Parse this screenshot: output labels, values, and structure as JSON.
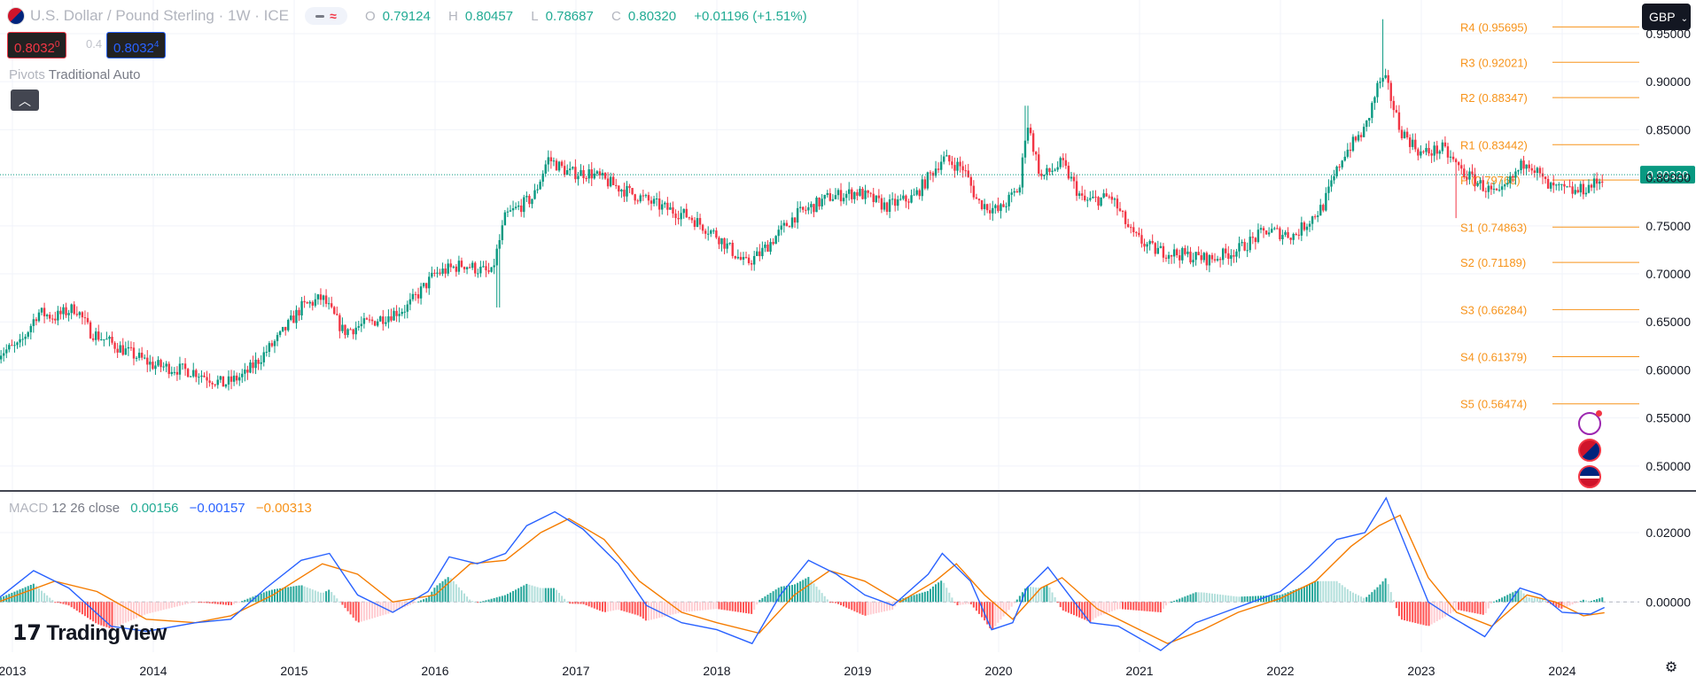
{
  "header": {
    "title": "U.S. Dollar / Pound Sterling · 1W · ICE",
    "ohlc": {
      "o_label": "O",
      "o": "0.79124",
      "h_label": "H",
      "h": "0.80457",
      "l_label": "L",
      "l": "0.78687",
      "c_label": "C",
      "c": "0.80320",
      "change": "+0.01196 (+1.51%)"
    }
  },
  "trade": {
    "sell": "0.8032",
    "sell_sup": "0",
    "spread": "0.4",
    "buy": "0.8032",
    "buy_sup": "4"
  },
  "pivots_legend": {
    "name": "Pivots",
    "value": "Traditional Auto"
  },
  "currency": "GBP",
  "macd_legend": {
    "name": "MACD",
    "params": "12 26 close",
    "hist": "0.00156",
    "macd": "−0.00157",
    "signal": "−0.00313"
  },
  "logo": {
    "text": "TradingView"
  },
  "colors": {
    "up": "#089981",
    "down": "#f23645",
    "pivot": "#f7931a",
    "macd": "#2962ff",
    "signal": "#f57c00"
  },
  "icons": [
    "flag-us-gb-icon",
    "chevron-up-icon",
    "flash-icon",
    "flag-gb-icon",
    "flag-us-icon",
    "gear-icon"
  ],
  "chart_data": [
    {
      "type": "candlestick",
      "title": "U.S. Dollar / Pound Sterling · 1W · ICE",
      "x_ticks": [
        "2013",
        "2014",
        "2015",
        "2016",
        "2017",
        "2018",
        "2019",
        "2020",
        "2021",
        "2022",
        "2023",
        "2024"
      ],
      "y_ticks": [
        "0.95000",
        "0.90000",
        "0.85000",
        "0.80000",
        "0.75000",
        "0.70000",
        "0.65000",
        "0.60000",
        "0.55000",
        "0.50000"
      ],
      "ylim": [
        0.475,
        0.985
      ],
      "last_price": "0.80320",
      "close_path": [
        {
          "t": 2012.9,
          "v": 0.618
        },
        {
          "t": 2013.05,
          "v": 0.625
        },
        {
          "t": 2013.18,
          "v": 0.66
        },
        {
          "t": 2013.3,
          "v": 0.655
        },
        {
          "t": 2013.45,
          "v": 0.665
        },
        {
          "t": 2013.55,
          "v": 0.64
        },
        {
          "t": 2013.8,
          "v": 0.62
        },
        {
          "t": 2014.0,
          "v": 0.605
        },
        {
          "t": 2014.3,
          "v": 0.598
        },
        {
          "t": 2014.5,
          "v": 0.585
        },
        {
          "t": 2014.65,
          "v": 0.595
        },
        {
          "t": 2014.9,
          "v": 0.635
        },
        {
          "t": 2015.05,
          "v": 0.665
        },
        {
          "t": 2015.2,
          "v": 0.675
        },
        {
          "t": 2015.35,
          "v": 0.64
        },
        {
          "t": 2015.55,
          "v": 0.65
        },
        {
          "t": 2015.8,
          "v": 0.665
        },
        {
          "t": 2016.0,
          "v": 0.7
        },
        {
          "t": 2016.2,
          "v": 0.71
        },
        {
          "t": 2016.4,
          "v": 0.7
        },
        {
          "t": 2016.5,
          "v": 0.76
        },
        {
          "t": 2016.7,
          "v": 0.78
        },
        {
          "t": 2016.8,
          "v": 0.82
        },
        {
          "t": 2016.95,
          "v": 0.805
        },
        {
          "t": 2017.1,
          "v": 0.805
        },
        {
          "t": 2017.3,
          "v": 0.79
        },
        {
          "t": 2017.6,
          "v": 0.77
        },
        {
          "t": 2017.8,
          "v": 0.76
        },
        {
          "t": 2018.0,
          "v": 0.74
        },
        {
          "t": 2018.2,
          "v": 0.71
        },
        {
          "t": 2018.3,
          "v": 0.72
        },
        {
          "t": 2018.55,
          "v": 0.76
        },
        {
          "t": 2018.8,
          "v": 0.78
        },
        {
          "t": 2019.0,
          "v": 0.785
        },
        {
          "t": 2019.2,
          "v": 0.77
        },
        {
          "t": 2019.4,
          "v": 0.78
        },
        {
          "t": 2019.6,
          "v": 0.82
        },
        {
          "t": 2019.75,
          "v": 0.81
        },
        {
          "t": 2019.85,
          "v": 0.775
        },
        {
          "t": 2020.0,
          "v": 0.765
        },
        {
          "t": 2020.15,
          "v": 0.79
        },
        {
          "t": 2020.2,
          "v": 0.86
        },
        {
          "t": 2020.3,
          "v": 0.8
        },
        {
          "t": 2020.45,
          "v": 0.815
        },
        {
          "t": 2020.6,
          "v": 0.775
        },
        {
          "t": 2020.8,
          "v": 0.78
        },
        {
          "t": 2020.95,
          "v": 0.74
        },
        {
          "t": 2021.1,
          "v": 0.725
        },
        {
          "t": 2021.3,
          "v": 0.72
        },
        {
          "t": 2021.5,
          "v": 0.715
        },
        {
          "t": 2021.7,
          "v": 0.725
        },
        {
          "t": 2021.9,
          "v": 0.745
        },
        {
          "t": 2022.1,
          "v": 0.74
        },
        {
          "t": 2022.3,
          "v": 0.77
        },
        {
          "t": 2022.45,
          "v": 0.825
        },
        {
          "t": 2022.6,
          "v": 0.85
        },
        {
          "t": 2022.7,
          "v": 0.9
        },
        {
          "t": 2022.75,
          "v": 0.9
        },
        {
          "t": 2022.85,
          "v": 0.85
        },
        {
          "t": 2023.0,
          "v": 0.825
        },
        {
          "t": 2023.15,
          "v": 0.83
        },
        {
          "t": 2023.3,
          "v": 0.805
        },
        {
          "t": 2023.45,
          "v": 0.79
        },
        {
          "t": 2023.55,
          "v": 0.78
        },
        {
          "t": 2023.75,
          "v": 0.82
        },
        {
          "t": 2023.9,
          "v": 0.79
        },
        {
          "t": 2024.1,
          "v": 0.785
        },
        {
          "t": 2024.25,
          "v": 0.795
        },
        {
          "t": 2024.3,
          "v": 0.8032
        }
      ],
      "spikes": [
        {
          "t": 2022.73,
          "v": 0.965
        },
        {
          "t": 2020.2,
          "v": 0.875
        },
        {
          "t": 2016.45,
          "v": 0.665
        },
        {
          "t": 2023.25,
          "v": 0.758
        }
      ]
    },
    {
      "type": "pivots",
      "levels": [
        {
          "name": "R4",
          "value": 0.95695,
          "label": "R4 (0.95695)"
        },
        {
          "name": "R3",
          "value": 0.92021,
          "label": "R3 (0.92021)"
        },
        {
          "name": "R2",
          "value": 0.88347,
          "label": "R2 (0.88347)"
        },
        {
          "name": "R1",
          "value": 0.83442,
          "label": "R1 (0.83442)"
        },
        {
          "name": "P",
          "value": 0.79768,
          "label": "P (0.79768)"
        },
        {
          "name": "S1",
          "value": 0.74863,
          "label": "S1 (0.74863)"
        },
        {
          "name": "S2",
          "value": 0.71189,
          "label": "S2 (0.71189)"
        },
        {
          "name": "S3",
          "value": 0.66284,
          "label": "S3 (0.66284)"
        },
        {
          "name": "S4",
          "value": 0.61379,
          "label": "S4 (0.61379)"
        },
        {
          "name": "S5",
          "value": 0.56474,
          "label": "S5 (0.56474)"
        }
      ]
    },
    {
      "type": "line",
      "title": "MACD 12 26 close",
      "y_ticks": [
        "0.02000",
        "0.00000"
      ],
      "ylim": [
        -0.0145,
        0.0315
      ],
      "macd_path": [
        {
          "t": 2012.9,
          "v": 0.001
        },
        {
          "t": 2013.15,
          "v": 0.009
        },
        {
          "t": 2013.4,
          "v": 0.004
        },
        {
          "t": 2013.7,
          "v": -0.007
        },
        {
          "t": 2013.95,
          "v": -0.0085
        },
        {
          "t": 2014.3,
          "v": -0.006
        },
        {
          "t": 2014.55,
          "v": -0.005
        },
        {
          "t": 2014.8,
          "v": 0.004
        },
        {
          "t": 2015.05,
          "v": 0.012
        },
        {
          "t": 2015.25,
          "v": 0.014
        },
        {
          "t": 2015.45,
          "v": 0.002
        },
        {
          "t": 2015.7,
          "v": -0.003
        },
        {
          "t": 2015.95,
          "v": 0.003
        },
        {
          "t": 2016.1,
          "v": 0.013
        },
        {
          "t": 2016.3,
          "v": 0.011
        },
        {
          "t": 2016.5,
          "v": 0.014
        },
        {
          "t": 2016.65,
          "v": 0.022
        },
        {
          "t": 2016.85,
          "v": 0.026
        },
        {
          "t": 2017.05,
          "v": 0.021
        },
        {
          "t": 2017.3,
          "v": 0.011
        },
        {
          "t": 2017.5,
          "v": -0.001
        },
        {
          "t": 2017.75,
          "v": -0.006
        },
        {
          "t": 2018.0,
          "v": -0.008
        },
        {
          "t": 2018.25,
          "v": -0.012
        },
        {
          "t": 2018.45,
          "v": 0.002
        },
        {
          "t": 2018.65,
          "v": 0.012
        },
        {
          "t": 2018.85,
          "v": 0.008
        },
        {
          "t": 2019.05,
          "v": 0.002
        },
        {
          "t": 2019.25,
          "v": -0.001
        },
        {
          "t": 2019.5,
          "v": 0.008
        },
        {
          "t": 2019.6,
          "v": 0.014
        },
        {
          "t": 2019.8,
          "v": 0.006
        },
        {
          "t": 2019.95,
          "v": -0.008
        },
        {
          "t": 2020.1,
          "v": -0.006
        },
        {
          "t": 2020.2,
          "v": 0.004
        },
        {
          "t": 2020.35,
          "v": 0.01
        },
        {
          "t": 2020.5,
          "v": 0.002
        },
        {
          "t": 2020.65,
          "v": -0.006
        },
        {
          "t": 2020.85,
          "v": -0.007
        },
        {
          "t": 2021.15,
          "v": -0.014
        },
        {
          "t": 2021.4,
          "v": -0.006
        },
        {
          "t": 2021.6,
          "v": -0.003
        },
        {
          "t": 2021.8,
          "v": 0.0
        },
        {
          "t": 2022.0,
          "v": 0.003
        },
        {
          "t": 2022.2,
          "v": 0.01
        },
        {
          "t": 2022.4,
          "v": 0.018
        },
        {
          "t": 2022.6,
          "v": 0.02
        },
        {
          "t": 2022.75,
          "v": 0.03
        },
        {
          "t": 2022.9,
          "v": 0.015
        },
        {
          "t": 2023.05,
          "v": 0.0
        },
        {
          "t": 2023.2,
          "v": -0.004
        },
        {
          "t": 2023.45,
          "v": -0.01
        },
        {
          "t": 2023.7,
          "v": 0.004
        },
        {
          "t": 2023.85,
          "v": 0.002
        },
        {
          "t": 2024.0,
          "v": -0.003
        },
        {
          "t": 2024.2,
          "v": -0.0035
        },
        {
          "t": 2024.3,
          "v": -0.0016
        }
      ],
      "signal_path": [
        {
          "t": 2012.9,
          "v": 0.0
        },
        {
          "t": 2013.3,
          "v": 0.006
        },
        {
          "t": 2013.6,
          "v": 0.003
        },
        {
          "t": 2013.95,
          "v": -0.005
        },
        {
          "t": 2014.3,
          "v": -0.006
        },
        {
          "t": 2014.55,
          "v": -0.004
        },
        {
          "t": 2014.85,
          "v": 0.002
        },
        {
          "t": 2015.2,
          "v": 0.011
        },
        {
          "t": 2015.45,
          "v": 0.008
        },
        {
          "t": 2015.7,
          "v": 0.0
        },
        {
          "t": 2016.0,
          "v": 0.002
        },
        {
          "t": 2016.25,
          "v": 0.011
        },
        {
          "t": 2016.5,
          "v": 0.012
        },
        {
          "t": 2016.75,
          "v": 0.02
        },
        {
          "t": 2016.95,
          "v": 0.024
        },
        {
          "t": 2017.2,
          "v": 0.018
        },
        {
          "t": 2017.45,
          "v": 0.006
        },
        {
          "t": 2017.75,
          "v": -0.003
        },
        {
          "t": 2018.0,
          "v": -0.006
        },
        {
          "t": 2018.3,
          "v": -0.009
        },
        {
          "t": 2018.55,
          "v": 0.002
        },
        {
          "t": 2018.8,
          "v": 0.009
        },
        {
          "t": 2019.05,
          "v": 0.006
        },
        {
          "t": 2019.3,
          "v": 0.0
        },
        {
          "t": 2019.55,
          "v": 0.006
        },
        {
          "t": 2019.7,
          "v": 0.011
        },
        {
          "t": 2019.9,
          "v": 0.002
        },
        {
          "t": 2020.1,
          "v": -0.005
        },
        {
          "t": 2020.3,
          "v": 0.004
        },
        {
          "t": 2020.45,
          "v": 0.007
        },
        {
          "t": 2020.7,
          "v": -0.002
        },
        {
          "t": 2020.95,
          "v": -0.007
        },
        {
          "t": 2021.2,
          "v": -0.012
        },
        {
          "t": 2021.45,
          "v": -0.008
        },
        {
          "t": 2021.7,
          "v": -0.003
        },
        {
          "t": 2022.0,
          "v": 0.001
        },
        {
          "t": 2022.25,
          "v": 0.006
        },
        {
          "t": 2022.5,
          "v": 0.016
        },
        {
          "t": 2022.7,
          "v": 0.022
        },
        {
          "t": 2022.85,
          "v": 0.025
        },
        {
          "t": 2023.05,
          "v": 0.007
        },
        {
          "t": 2023.25,
          "v": -0.003
        },
        {
          "t": 2023.5,
          "v": -0.007
        },
        {
          "t": 2023.75,
          "v": 0.002
        },
        {
          "t": 2023.95,
          "v": 0.0
        },
        {
          "t": 2024.15,
          "v": -0.004
        },
        {
          "t": 2024.3,
          "v": -0.0031
        }
      ],
      "zero_line": true
    }
  ]
}
